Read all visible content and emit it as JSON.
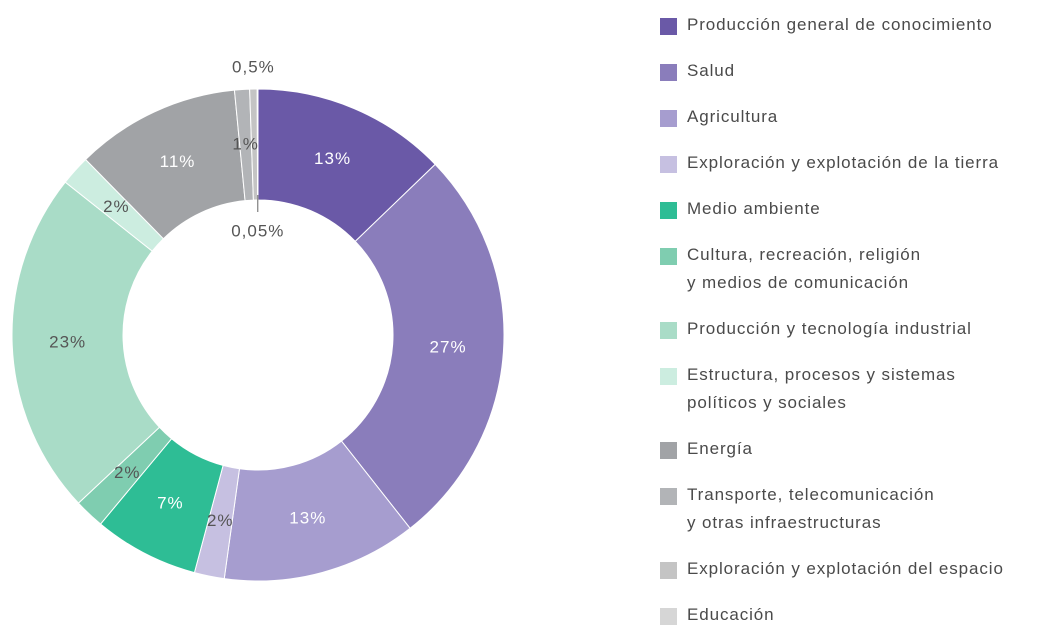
{
  "chart_data": {
    "type": "pie",
    "categories": [
      "Producción general de conocimiento",
      "Salud",
      "Agricultura",
      "Exploración y explotación de la tierra",
      "Medio ambiente",
      "Cultura, recreación, religión\ny medios de comunicación",
      "Producción y tecnología industrial",
      "Estructura, procesos y sistemas\npolíticos y sociales",
      "Energía",
      "Transporte, telecomunicación\ny otras infraestructuras",
      "Exploración y explotación del espacio",
      "Educación"
    ],
    "values": [
      13,
      27,
      13,
      2,
      7,
      2,
      23,
      2,
      11,
      1,
      0.5,
      0.05
    ],
    "value_labels": [
      "13%",
      "27%",
      "13%",
      "2%",
      "7%",
      "2%",
      "23%",
      "2%",
      "11%",
      "1%",
      "0,5%",
      "0,05%"
    ],
    "colors": [
      "#6a59a7",
      "#8a7dbb",
      "#a69dcf",
      "#c6c0e1",
      "#2ebd95",
      "#7fcdb0",
      "#a9dcc7",
      "#ccede0",
      "#a1a3a6",
      "#b2b4b7",
      "#c4c4c4",
      "#d6d6d6"
    ],
    "donut": true
  }
}
